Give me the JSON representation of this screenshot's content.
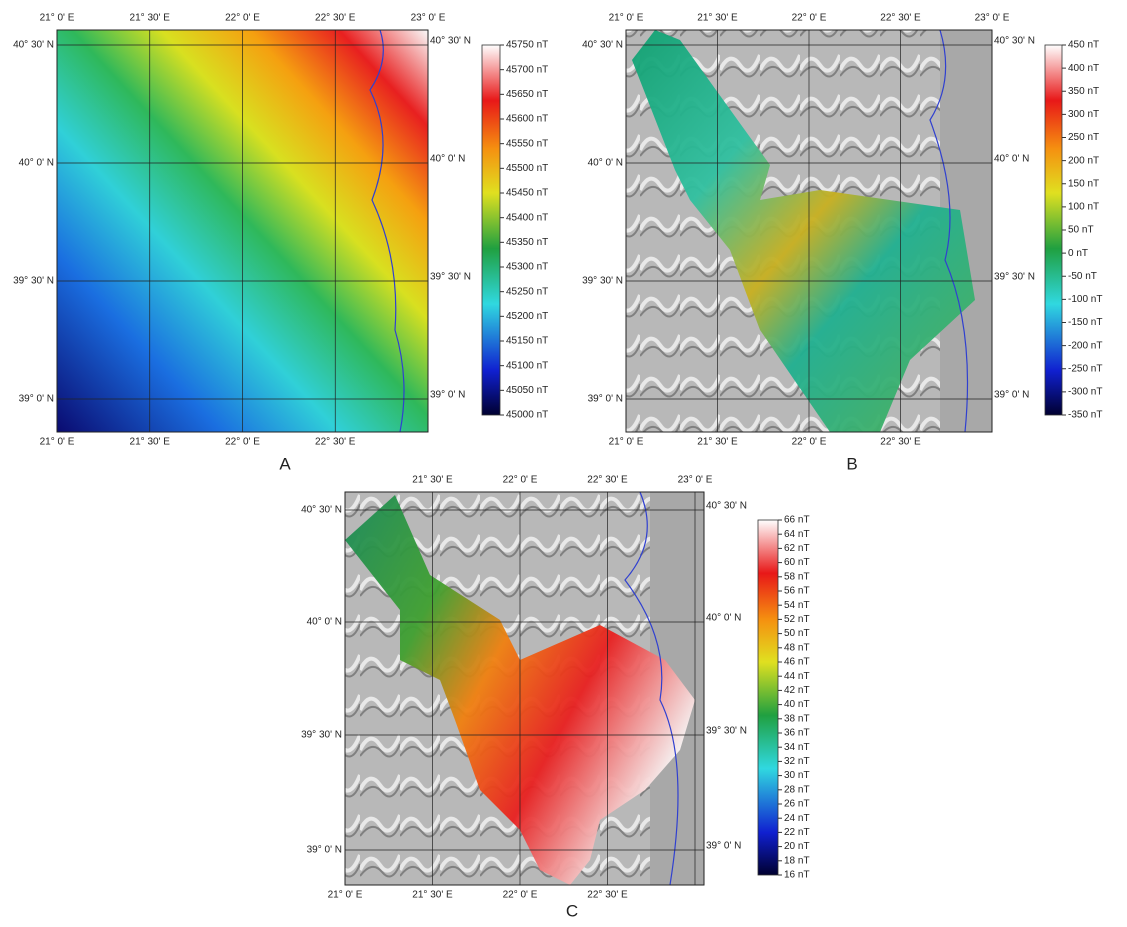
{
  "panels": [
    {
      "label": "A",
      "top_lon": [
        "21° 0' E",
        "21° 30' E",
        "22° 0' E",
        "22° 30' E",
        "23° 0' E"
      ],
      "bottom_lon": [
        "21° 0' E",
        "21° 30' E",
        "22° 0' E",
        "22° 30' E"
      ],
      "left_lat": [
        "40° 30' N",
        "40° 0' N",
        "39° 30' N",
        "39° 0' N"
      ],
      "right_lat": [
        "40° 30' N",
        "40° 0' N",
        "39° 30' N",
        "39° 0' N"
      ],
      "colorbar": [
        "45750 nT",
        "45700 nT",
        "45650 nT",
        "45600 nT",
        "45550 nT",
        "45500 nT",
        "45450 nT",
        "45400 nT",
        "45350 nT",
        "45300 nT",
        "45250 nT",
        "45200 nT",
        "45150 nT",
        "45100 nT",
        "45050 nT",
        "45000 nT"
      ]
    },
    {
      "label": "B",
      "top_lon": [
        "21° 0' E",
        "21° 30' E",
        "22° 0' E",
        "22° 30' E",
        "23° 0' E"
      ],
      "bottom_lon": [
        "21° 0' E",
        "21° 30' E",
        "22° 0' E",
        "22° 30' E"
      ],
      "left_lat": [
        "40° 30' N",
        "40° 0' N",
        "39° 30' N",
        "39° 0' N"
      ],
      "right_lat": [
        "40° 30' N",
        "40° 0' N",
        "39° 30' N",
        "39° 0' N"
      ],
      "colorbar": [
        "450 nT",
        "400 nT",
        "350 nT",
        "300 nT",
        "250 nT",
        "200 nT",
        "150 nT",
        "100 nT",
        "50 nT",
        "0 nT",
        "-50 nT",
        "-100 nT",
        "-150 nT",
        "-200 nT",
        "-250 nT",
        "-300 nT",
        "-350 nT"
      ]
    },
    {
      "label": "C",
      "top_lon": [
        "21° 30' E",
        "22° 0' E",
        "22° 30' E",
        "23° 0' E"
      ],
      "bottom_lon": [
        "21° 0' E",
        "21° 30' E",
        "22° 0' E",
        "22° 30' E"
      ],
      "left_lat": [
        "40° 30' N",
        "40° 0' N",
        "39° 30' N",
        "39° 0' N"
      ],
      "right_lat": [
        "40° 30' N",
        "40° 0' N",
        "39° 30' N",
        "39° 0' N"
      ],
      "colorbar": [
        "66 nT",
        "64 nT",
        "62 nT",
        "60 nT",
        "58 nT",
        "56 nT",
        "54 nT",
        "52 nT",
        "50 nT",
        "48 nT",
        "46 nT",
        "44 nT",
        "42 nT",
        "40 nT",
        "38 nT",
        "36 nT",
        "34 nT",
        "32 nT",
        "30 nT",
        "28 nT",
        "26 nT",
        "24 nT",
        "22 nT",
        "20 nT",
        "18 nT",
        "16 nT"
      ]
    }
  ]
}
